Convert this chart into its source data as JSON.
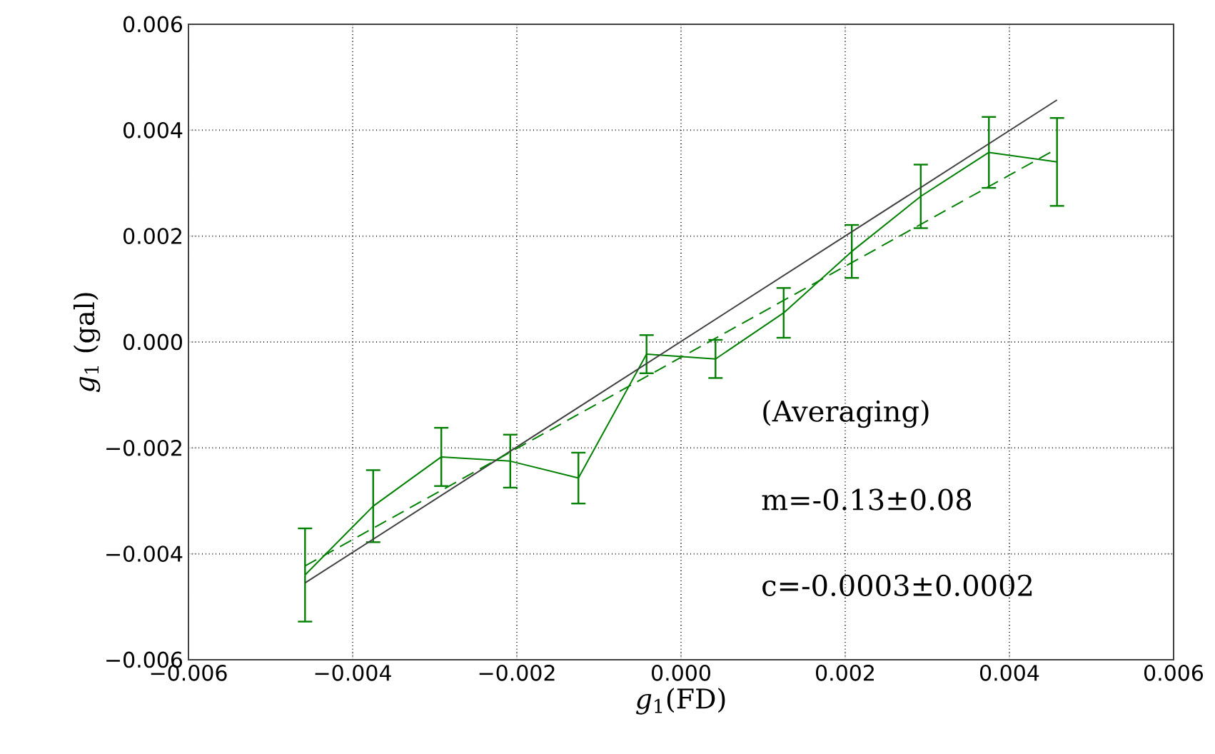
{
  "chart_data": {
    "type": "line",
    "xlabel": "*g*$_{1}$(FD)",
    "ylabel": "*g*$_{1}$ (gal)",
    "series": [
      {
        "color": "#008000",
        "x": [
          -0.00458,
          -0.00375,
          -0.00292,
          -0.00208,
          -0.00125,
          -0.00042,
          0.00042,
          0.00125,
          0.00208,
          0.00292,
          0.00375,
          0.00458
        ],
        "values": [
          -0.0044,
          -0.0031,
          -0.00217,
          -0.00225,
          -0.00257,
          -0.00023,
          -0.00032,
          0.00055,
          0.00171,
          0.00275,
          0.00358,
          0.0034
        ],
        "errors": [
          0.00088,
          0.00068,
          0.00055,
          0.0005,
          0.00048,
          0.00036,
          0.00036,
          0.00047,
          0.0005,
          0.0006,
          0.00067,
          0.00083
        ]
      },
      {
        "color": "#404040",
        "x": [
          -0.00458,
          0.00458
        ],
        "values": [
          -0.00455,
          0.00457
        ]
      },
      {
        "color": "#008000",
        "line_style": "dashed",
        "x": [
          -0.00458,
          0.00458
        ],
        "values": [
          -0.00423,
          0.00365
        ]
      }
    ],
    "xlim": [
      -0.006,
      0.006
    ],
    "ylim": [
      -0.006,
      0.006
    ],
    "xticks": [
      {
        "value": -0.006,
        "label": "−0.006"
      },
      {
        "value": -0.004,
        "label": "−0.004"
      },
      {
        "value": -0.002,
        "label": "−0.002"
      },
      {
        "value": 0,
        "label": "0.000"
      },
      {
        "value": 0.002,
        "label": "0.002"
      },
      {
        "value": 0.004,
        "label": "0.004"
      },
      {
        "value": 0.006,
        "label": "0.006"
      }
    ],
    "yticks": [
      {
        "value": -0.006,
        "label": "−0.006"
      },
      {
        "value": -0.004,
        "label": "−0.004"
      },
      {
        "value": -0.002,
        "label": "−0.002"
      },
      {
        "value": 0,
        "label": "0.000"
      },
      {
        "value": 0.002,
        "label": "0.002"
      },
      {
        "value": 0.004,
        "label": "0.004"
      },
      {
        "value": 0.006,
        "label": "0.006"
      }
    ],
    "grid": true,
    "annotations": [
      "(Averaging)",
      "m=-0.13±0.08",
      "c=-0.0003±0.0002"
    ]
  }
}
